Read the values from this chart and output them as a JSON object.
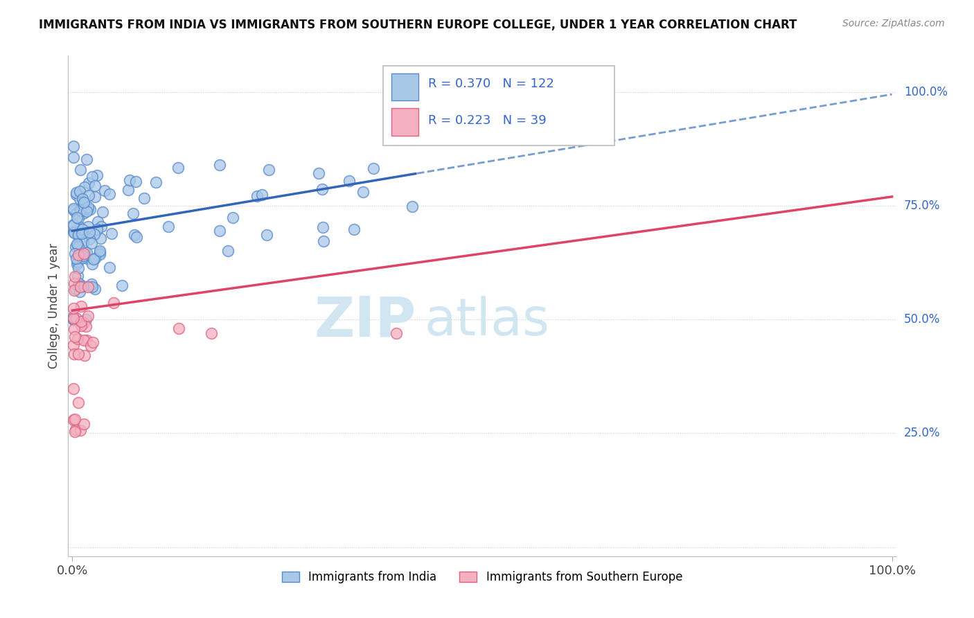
{
  "title": "IMMIGRANTS FROM INDIA VS IMMIGRANTS FROM SOUTHERN EUROPE COLLEGE, UNDER 1 YEAR CORRELATION CHART",
  "source": "Source: ZipAtlas.com",
  "ylabel": "College, Under 1 year",
  "legend_label1": "Immigrants from India",
  "legend_label2": "Immigrants from Southern Europe",
  "R1": 0.37,
  "N1": 122,
  "R2": 0.223,
  "N2": 39,
  "blue_fill": "#a8c8e8",
  "blue_edge": "#5588cc",
  "pink_fill": "#f4b0c0",
  "pink_edge": "#e06080",
  "blue_line": "#3366bb",
  "pink_line": "#dd4466",
  "grid_color": "#cccccc",
  "right_label_color": "#3366cc",
  "watermark_color": "#cce4f0",
  "title_color": "#111111",
  "source_color": "#888888"
}
